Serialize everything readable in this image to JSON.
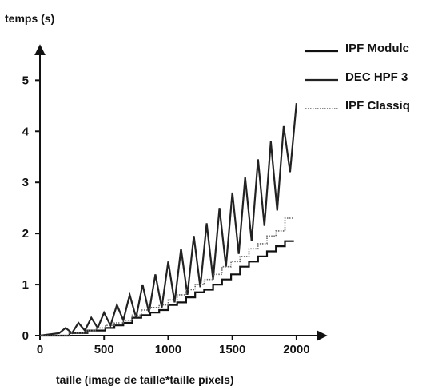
{
  "chart_data": {
    "type": "line",
    "ylabel": "temps (s)",
    "xlabel": "taille (image de taille*taille pixels)",
    "xlim": [
      0,
      2200
    ],
    "ylim": [
      0,
      5.6
    ],
    "xticks": [
      0,
      500,
      1000,
      1500,
      2000
    ],
    "yticks": [
      0,
      1,
      2,
      3,
      4,
      5
    ],
    "legend_position": "top-right",
    "series": [
      {
        "name": "IPF Modulc",
        "color": "#111111",
        "style": "solid",
        "x": [
          0,
          160,
          230,
          300,
          370,
          440,
          510,
          580,
          650,
          720,
          790,
          860,
          930,
          1000,
          1070,
          1140,
          1210,
          1280,
          1350,
          1420,
          1490,
          1560,
          1630,
          1700,
          1770,
          1840,
          1910,
          1980
        ],
        "y": [
          0.0,
          0.0,
          0.05,
          0.05,
          0.1,
          0.1,
          0.15,
          0.2,
          0.25,
          0.35,
          0.4,
          0.45,
          0.5,
          0.6,
          0.65,
          0.75,
          0.85,
          0.9,
          1.0,
          1.1,
          1.2,
          1.35,
          1.45,
          1.55,
          1.65,
          1.75,
          1.85,
          1.85
        ]
      },
      {
        "name": "DEC HPF 3",
        "color": "#222222",
        "style": "solid",
        "x": [
          0,
          150,
          200,
          250,
          300,
          350,
          400,
          450,
          500,
          550,
          600,
          650,
          700,
          750,
          800,
          850,
          900,
          950,
          1000,
          1050,
          1100,
          1150,
          1200,
          1250,
          1300,
          1350,
          1400,
          1450,
          1500,
          1550,
          1600,
          1650,
          1700,
          1750,
          1800,
          1850,
          1900,
          1950,
          2000
        ],
        "y": [
          0.0,
          0.05,
          0.15,
          0.05,
          0.25,
          0.1,
          0.35,
          0.15,
          0.45,
          0.2,
          0.6,
          0.3,
          0.8,
          0.35,
          1.0,
          0.45,
          1.2,
          0.55,
          1.45,
          0.65,
          1.7,
          0.8,
          1.95,
          0.95,
          2.2,
          1.1,
          2.5,
          1.35,
          2.8,
          1.6,
          3.1,
          1.85,
          3.45,
          2.15,
          3.8,
          2.45,
          4.1,
          3.2,
          4.55
        ]
      },
      {
        "name": "IPF Classiq",
        "color": "#666666",
        "style": "dotted",
        "x": [
          0,
          160,
          230,
          300,
          370,
          440,
          510,
          580,
          650,
          720,
          790,
          860,
          930,
          1000,
          1070,
          1140,
          1210,
          1280,
          1350,
          1420,
          1490,
          1560,
          1630,
          1700,
          1770,
          1840,
          1910,
          1980
        ],
        "y": [
          0.0,
          0.0,
          0.05,
          0.05,
          0.1,
          0.15,
          0.2,
          0.25,
          0.3,
          0.4,
          0.5,
          0.55,
          0.6,
          0.7,
          0.8,
          0.9,
          1.0,
          1.1,
          1.2,
          1.35,
          1.45,
          1.55,
          1.7,
          1.8,
          1.95,
          2.05,
          2.3,
          2.3
        ]
      }
    ]
  }
}
